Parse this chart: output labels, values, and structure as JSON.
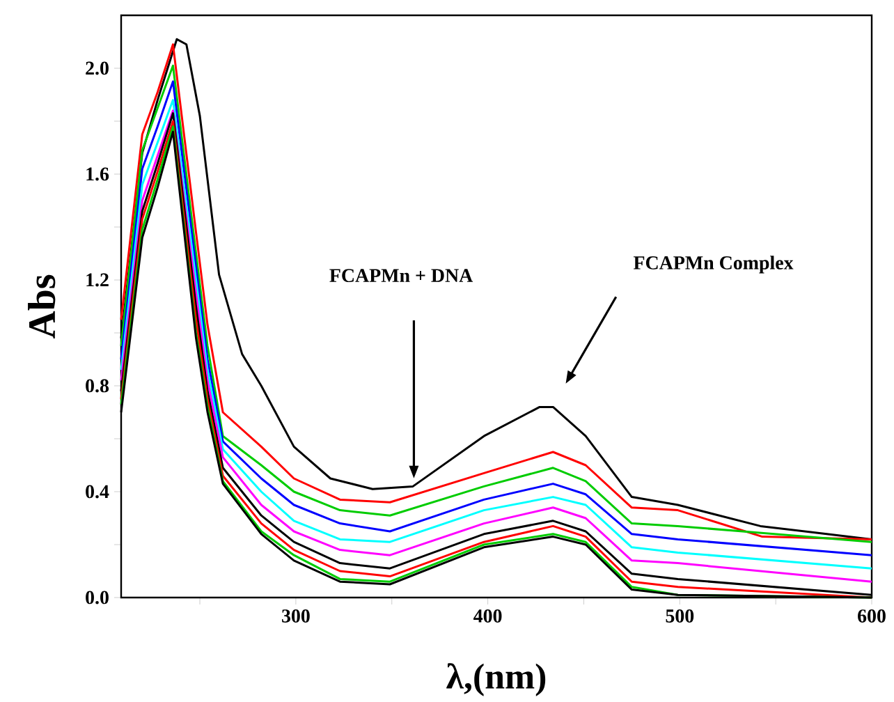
{
  "chart_data": {
    "type": "line",
    "xlabel": "λ,(nm)",
    "ylabel": "Abs",
    "marker": "none",
    "xlim": [
      209,
      600
    ],
    "ylim": [
      0,
      2.2
    ],
    "xticks": [
      {
        "value": 250,
        "label": null
      },
      300,
      {
        "value": 350,
        "label": null
      },
      400,
      {
        "value": 450,
        "label": null
      },
      500,
      {
        "value": 550,
        "label": null
      },
      600
    ],
    "yticks": [
      {
        "value": 0,
        "label": "0.0"
      },
      {
        "value": 0.2,
        "label": null
      },
      {
        "value": 0.4,
        "label": "0.4"
      },
      {
        "value": 0.6,
        "label": null
      },
      {
        "value": 0.8,
        "label": "0.8"
      },
      {
        "value": 1.0,
        "label": null
      },
      {
        "value": 1.2,
        "label": "1.2"
      },
      {
        "value": 1.4,
        "label": null
      },
      {
        "value": 1.6,
        "label": "1.6"
      },
      {
        "value": 1.8,
        "label": null
      },
      {
        "value": 2.0,
        "label": "2.0"
      }
    ],
    "annotations": [
      "FCAPMn + DNA",
      "FCAPMn Complex"
    ],
    "series": [
      {
        "color": "#000000",
        "x": [
          209,
          220,
          228,
          238,
          243,
          250,
          260,
          272,
          282,
          299,
          318,
          340,
          361,
          398,
          427,
          434,
          451,
          475,
          499,
          542,
          600
        ],
        "values": [
          0.98,
          1.68,
          1.88,
          2.11,
          2.09,
          1.82,
          1.22,
          0.92,
          0.8,
          0.57,
          0.45,
          0.41,
          0.42,
          0.61,
          0.72,
          0.72,
          0.61,
          0.38,
          0.35,
          0.27,
          0.22
        ]
      },
      {
        "color": "#ff0000",
        "x": [
          209,
          220,
          228,
          236,
          248,
          254,
          262,
          282,
          299,
          323,
          349,
          398,
          434,
          451,
          475,
          499,
          543,
          600
        ],
        "values": [
          1.05,
          1.75,
          1.91,
          2.09,
          1.38,
          1.03,
          0.7,
          0.57,
          0.45,
          0.37,
          0.36,
          0.47,
          0.55,
          0.5,
          0.34,
          0.33,
          0.23,
          0.22
        ]
      },
      {
        "color": "#00cc00",
        "x": [
          209,
          220,
          228,
          236,
          248,
          254,
          262,
          282,
          299,
          323,
          349,
          398,
          434,
          451,
          475,
          499,
          600
        ],
        "values": [
          0.95,
          1.69,
          1.85,
          2.01,
          1.3,
          0.95,
          0.61,
          0.5,
          0.4,
          0.33,
          0.31,
          0.42,
          0.49,
          0.44,
          0.28,
          0.27,
          0.21
        ]
      },
      {
        "color": "#0000ff",
        "x": [
          209,
          220,
          228,
          236,
          248,
          254,
          262,
          282,
          299,
          323,
          349,
          398,
          434,
          451,
          475,
          499,
          600
        ],
        "values": [
          0.9,
          1.62,
          1.78,
          1.95,
          1.25,
          0.9,
          0.59,
          0.45,
          0.35,
          0.28,
          0.25,
          0.37,
          0.43,
          0.39,
          0.24,
          0.22,
          0.16
        ]
      },
      {
        "color": "#00ffff",
        "x": [
          209,
          220,
          228,
          236,
          248,
          254,
          262,
          282,
          299,
          323,
          349,
          398,
          434,
          451,
          475,
          499,
          600
        ],
        "values": [
          0.86,
          1.56,
          1.72,
          1.88,
          1.2,
          0.86,
          0.56,
          0.4,
          0.29,
          0.22,
          0.21,
          0.33,
          0.38,
          0.35,
          0.19,
          0.17,
          0.11
        ]
      },
      {
        "color": "#ff00ff",
        "x": [
          209,
          220,
          228,
          236,
          248,
          254,
          262,
          282,
          299,
          323,
          349,
          398,
          434,
          451,
          475,
          499,
          600
        ],
        "values": [
          0.82,
          1.5,
          1.67,
          1.84,
          1.15,
          0.82,
          0.53,
          0.35,
          0.25,
          0.18,
          0.16,
          0.28,
          0.34,
          0.3,
          0.14,
          0.13,
          0.06
        ]
      },
      {
        "color": "#000000",
        "x": [
          209,
          220,
          228,
          236,
          248,
          254,
          262,
          282,
          299,
          323,
          349,
          398,
          434,
          451,
          475,
          499,
          600
        ],
        "values": [
          0.78,
          1.46,
          1.64,
          1.83,
          1.1,
          0.78,
          0.49,
          0.31,
          0.21,
          0.13,
          0.11,
          0.24,
          0.29,
          0.25,
          0.09,
          0.07,
          0.01
        ]
      },
      {
        "color": "#ff0000",
        "x": [
          209,
          220,
          228,
          236,
          248,
          254,
          262,
          282,
          299,
          323,
          349,
          398,
          434,
          451,
          475,
          499,
          600
        ],
        "values": [
          0.75,
          1.43,
          1.61,
          1.8,
          1.05,
          0.75,
          0.46,
          0.28,
          0.18,
          0.1,
          0.08,
          0.21,
          0.27,
          0.23,
          0.06,
          0.04,
          0.0
        ]
      },
      {
        "color": "#00cc00",
        "x": [
          209,
          220,
          228,
          236,
          248,
          254,
          262,
          282,
          299,
          323,
          349,
          398,
          434,
          451,
          475,
          499,
          600
        ],
        "values": [
          0.73,
          1.39,
          1.58,
          1.78,
          1.0,
          0.72,
          0.44,
          0.25,
          0.16,
          0.07,
          0.06,
          0.2,
          0.24,
          0.21,
          0.04,
          0.01,
          0.0
        ]
      },
      {
        "color": "#000000",
        "x": [
          209,
          220,
          228,
          236,
          248,
          254,
          262,
          282,
          299,
          323,
          349,
          398,
          434,
          451,
          475,
          499,
          600
        ],
        "values": [
          0.7,
          1.36,
          1.55,
          1.76,
          0.98,
          0.7,
          0.43,
          0.24,
          0.14,
          0.06,
          0.05,
          0.19,
          0.23,
          0.2,
          0.03,
          0.01,
          0.0
        ]
      }
    ]
  }
}
